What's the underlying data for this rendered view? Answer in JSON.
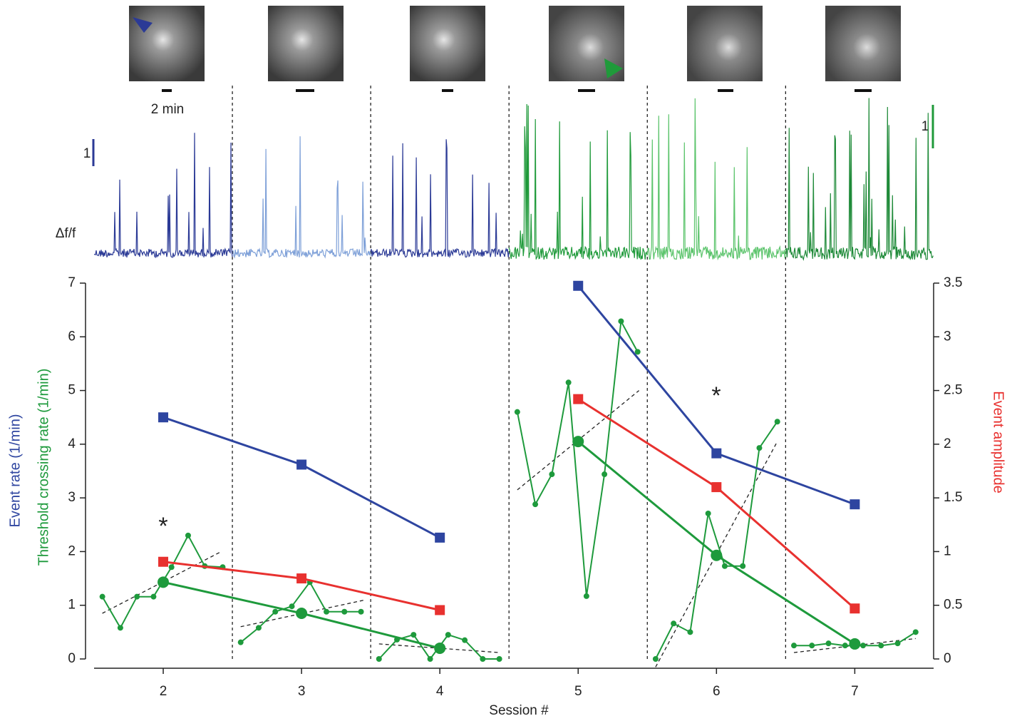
{
  "chart_data": {
    "type": "line",
    "x_label": "Session #",
    "y_label": "Event rate (1/min)",
    "y_label_2": "Threshold crossing rate (1/min)",
    "y2_label": "Event amplitude",
    "xlim": [
      1.5,
      7.57
    ],
    "xticks": [
      2,
      3,
      4,
      5,
      6,
      7
    ],
    "ylim": [
      0,
      7
    ],
    "yticks": [
      0,
      1,
      2,
      3,
      4,
      5,
      6,
      7
    ],
    "y2lim": [
      0,
      3.5
    ],
    "y2ticks": [
      0,
      0.5,
      1,
      1.5,
      2,
      2.5,
      3,
      3.5
    ],
    "series": [
      {
        "color": "#2e45a0",
        "marker": "square",
        "x": [
          2,
          3,
          4
        ],
        "values": [
          4.5,
          3.62,
          2.26
        ]
      },
      {
        "color": "#2e45a0",
        "marker": "square",
        "x": [
          5,
          6,
          7
        ],
        "values": [
          6.95,
          3.83,
          2.88
        ]
      },
      {
        "color": "#e8312f",
        "marker": "square",
        "axis": "y2",
        "x": [
          2,
          3,
          4
        ],
        "values": [
          0.905,
          0.75,
          0.455
        ]
      },
      {
        "color": "#e8312f",
        "marker": "square",
        "axis": "y2",
        "x": [
          5,
          6,
          7
        ],
        "values": [
          2.42,
          1.6,
          0.47
        ]
      },
      {
        "color": "#1e9a3c",
        "marker": "dot",
        "x": [
          1.56,
          1.69,
          1.81,
          1.93,
          2.06,
          2.18,
          2.3,
          2.43
        ],
        "values": [
          1.16,
          0.58,
          1.16,
          1.16,
          1.71,
          2.3,
          1.73,
          1.71
        ]
      },
      {
        "color": "#1e9a3c",
        "marker": "dot",
        "x": [
          2.56,
          2.69,
          2.81,
          2.93,
          3.06,
          3.18,
          3.31,
          3.43
        ],
        "values": [
          0.31,
          0.58,
          0.88,
          0.98,
          1.43,
          0.88,
          0.88,
          0.88
        ]
      },
      {
        "color": "#1e9a3c",
        "marker": "dot",
        "x": [
          3.56,
          3.69,
          3.81,
          3.93,
          4.06,
          4.18,
          4.31,
          4.43
        ],
        "values": [
          0,
          0.36,
          0.45,
          0,
          0.45,
          0.35,
          0,
          0
        ]
      },
      {
        "color": "#1e9a3c",
        "marker": "dot",
        "x": [
          4.56,
          4.69,
          4.81,
          4.93,
          5.06,
          5.19,
          5.31,
          5.43
        ],
        "values": [
          4.6,
          2.88,
          3.44,
          5.15,
          1.17,
          3.44,
          6.29,
          5.72
        ]
      },
      {
        "color": "#1e9a3c",
        "marker": "dot",
        "x": [
          5.56,
          5.69,
          5.81,
          5.94,
          6.06,
          6.19,
          6.31,
          6.44
        ],
        "values": [
          0,
          0.66,
          0.5,
          2.71,
          1.73,
          1.73,
          3.93,
          4.42
        ]
      },
      {
        "color": "#1e9a3c",
        "marker": "dot",
        "x": [
          6.56,
          6.69,
          6.81,
          6.93,
          7.06,
          7.19,
          7.31,
          7.44
        ],
        "values": [
          0.25,
          0.25,
          0.29,
          0.25,
          0.25,
          0.25,
          0.29,
          0.5
        ]
      },
      {
        "color": "#1e9a3c",
        "marker": "circle",
        "x": [
          2,
          3,
          4
        ],
        "values": [
          1.43,
          0.85,
          0.2
        ]
      },
      {
        "color": "#1e9a3c",
        "marker": "circle",
        "x": [
          5,
          6,
          7
        ],
        "values": [
          4.05,
          1.93,
          0.28
        ]
      },
      {
        "color": "#222222",
        "dashed": true,
        "x": [
          1.56,
          2.42
        ],
        "values": [
          0.85,
          2.0
        ]
      },
      {
        "color": "#222222",
        "dashed": true,
        "x": [
          2.56,
          3.46
        ],
        "values": [
          0.6,
          1.1
        ]
      },
      {
        "color": "#222222",
        "dashed": true,
        "x": [
          3.56,
          4.43
        ],
        "values": [
          0.28,
          0.12
        ]
      },
      {
        "color": "#222222",
        "dashed": true,
        "x": [
          4.56,
          5.44
        ],
        "values": [
          3.15,
          5.0
        ]
      },
      {
        "color": "#222222",
        "dashed": true,
        "x": [
          5.56,
          6.44
        ],
        "values": [
          -0.15,
          4.05
        ]
      },
      {
        "color": "#222222",
        "dashed": true,
        "x": [
          6.56,
          7.44
        ],
        "values": [
          0.12,
          0.38
        ]
      }
    ],
    "annotations": [
      "*",
      "*"
    ],
    "traces": {
      "time_scale": "2 min",
      "amplitude_scale_left": "1",
      "amplitude_scale_right": "1",
      "label": "Δf/f",
      "colors": [
        "#2b3a96",
        "#7ea0d8",
        "#2b3a96",
        "#1f9a3a",
        "#5cc46c",
        "#1e8a38"
      ]
    }
  }
}
